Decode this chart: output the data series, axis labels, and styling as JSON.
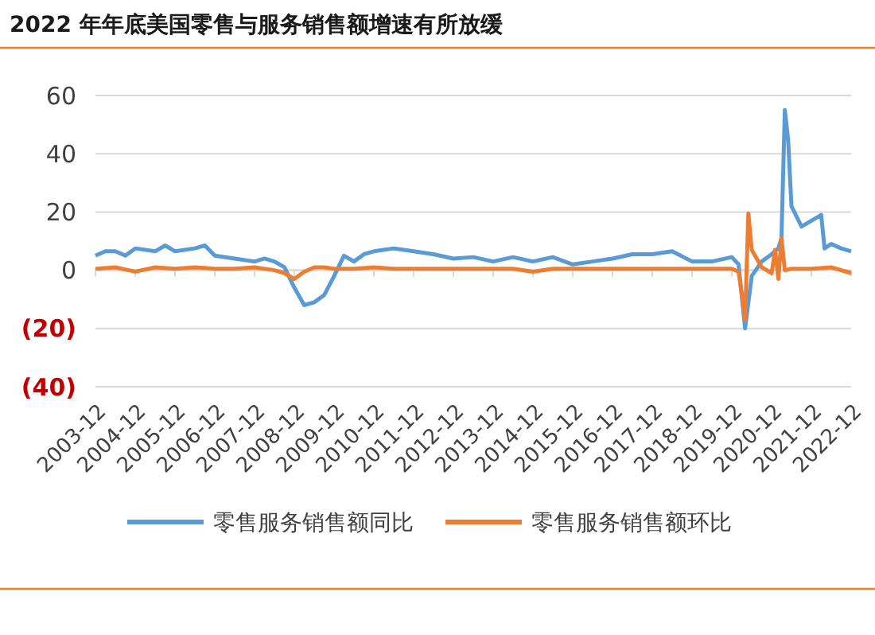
{
  "chart_data": {
    "type": "line",
    "title": "2022 年年底美国零售与服务销售额增速有所放缓",
    "xlim": [
      "2003-12",
      "2022-12"
    ],
    "xticks": [
      "2003-12",
      "2004-12",
      "2005-12",
      "2006-12",
      "2007-12",
      "2008-12",
      "2009-12",
      "2010-12",
      "2011-12",
      "2012-12",
      "2013-12",
      "2014-12",
      "2015-12",
      "2016-12",
      "2017-12",
      "2018-12",
      "2019-12",
      "2020-12",
      "2021-12",
      "2022-12"
    ],
    "ylim": [
      -40,
      60
    ],
    "yticks": [
      {
        "value": -40,
        "label": "(40)"
      },
      {
        "value": -20,
        "label": "(20)"
      },
      0,
      20,
      40,
      60
    ],
    "grid": "y",
    "legend": "bottom",
    "marker": "none",
    "line_style": "solid",
    "series": [
      {
        "name": "零售服务销售额同比",
        "color": "#5b9bd5",
        "x": [
          "2003-12",
          "2004-03",
          "2004-06",
          "2004-09",
          "2004-12",
          "2005-06",
          "2005-09",
          "2005-12",
          "2006-06",
          "2006-09",
          "2006-12",
          "2007-06",
          "2007-12",
          "2008-03",
          "2008-06",
          "2008-09",
          "2008-12",
          "2009-03",
          "2009-06",
          "2009-09",
          "2009-12",
          "2010-03",
          "2010-06",
          "2010-09",
          "2010-12",
          "2011-06",
          "2011-12",
          "2012-06",
          "2012-12",
          "2013-06",
          "2013-12",
          "2014-06",
          "2014-12",
          "2015-06",
          "2015-12",
          "2016-06",
          "2016-12",
          "2017-06",
          "2017-12",
          "2018-06",
          "2018-12",
          "2019-06",
          "2019-12",
          "2020-02",
          "2020-04",
          "2020-06",
          "2020-09",
          "2020-12",
          "2021-02",
          "2021-03",
          "2021-04",
          "2021-05",
          "2021-06",
          "2021-09",
          "2021-12",
          "2022-03",
          "2022-04",
          "2022-06",
          "2022-09",
          "2022-12"
        ],
        "values": [
          5,
          6.5,
          6.5,
          5,
          7.5,
          6.5,
          8.5,
          6.5,
          7.5,
          8.5,
          5,
          4,
          3,
          4,
          3,
          1,
          -6,
          -12,
          -11,
          -8.5,
          -2,
          5,
          3,
          5.5,
          6.5,
          7.5,
          6.5,
          5.5,
          4,
          4.5,
          3,
          4.5,
          3,
          4.5,
          2,
          3,
          4,
          5.5,
          5.5,
          6.5,
          3,
          3,
          4.5,
          2,
          -20,
          -2,
          3,
          5.5,
          7.5,
          11,
          55,
          45,
          22,
          15,
          17,
          19,
          7.5,
          9,
          7.5,
          6.5
        ]
      },
      {
        "name": "零售服务销售额环比",
        "color": "#ed7d31",
        "x": [
          "2003-12",
          "2004-06",
          "2004-12",
          "2005-06",
          "2005-12",
          "2006-06",
          "2006-12",
          "2007-06",
          "2007-12",
          "2008-06",
          "2008-09",
          "2008-12",
          "2009-03",
          "2009-06",
          "2009-09",
          "2009-12",
          "2010-06",
          "2010-12",
          "2011-06",
          "2011-12",
          "2012-06",
          "2012-12",
          "2013-06",
          "2013-12",
          "2014-06",
          "2014-12",
          "2015-06",
          "2015-12",
          "2016-06",
          "2016-12",
          "2017-06",
          "2017-12",
          "2018-06",
          "2018-12",
          "2019-06",
          "2019-12",
          "2020-02",
          "2020-03",
          "2020-04",
          "2020-05",
          "2020-06",
          "2020-09",
          "2020-12",
          "2021-01",
          "2021-02",
          "2021-03",
          "2021-04",
          "2021-06",
          "2021-12",
          "2022-06",
          "2022-12"
        ],
        "values": [
          0.5,
          1,
          -0.5,
          1,
          0.5,
          1,
          0.5,
          0.5,
          1,
          0,
          -1,
          -3,
          -0.5,
          1,
          1,
          0.5,
          0.5,
          1,
          0.5,
          0.5,
          0.5,
          0.5,
          0.5,
          0.5,
          0.5,
          -0.5,
          0.5,
          0.5,
          0.5,
          0.5,
          0.5,
          0.5,
          0.5,
          0.5,
          0.5,
          0.5,
          -0.5,
          -8,
          -17,
          19.5,
          7,
          1,
          -1,
          7,
          -3,
          11,
          0,
          0.5,
          0.5,
          1,
          -1
        ]
      }
    ]
  }
}
